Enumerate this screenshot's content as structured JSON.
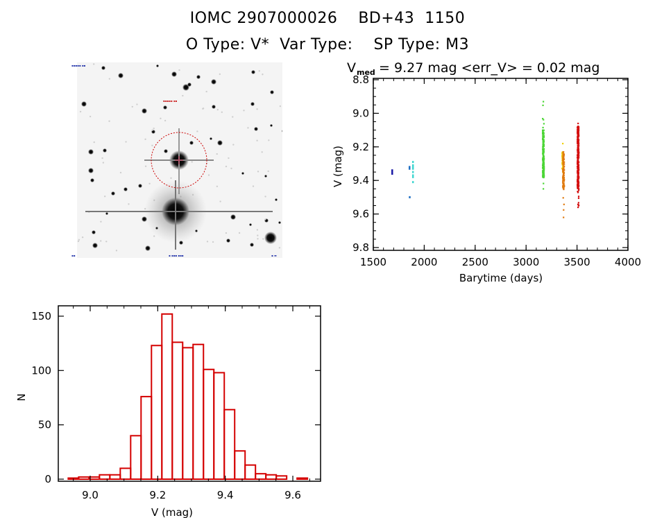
{
  "header": {
    "title_line1": "IOMC 2907000026    BD+43  1150",
    "title_line2": "O Type: V*  Var Type:    SP Type: M3"
  },
  "sky_image": {
    "description": "finder chart, inverted grayscale star field",
    "target_marker": "red dashed circle with cross",
    "corner_labels": [
      "",
      "",
      "",
      "",
      ""
    ]
  },
  "colors": {
    "histogram_bar": "#d40000",
    "axis": "#000000",
    "target_circle": "#cc0000"
  },
  "chart_data": [
    {
      "type": "scatter",
      "title_prefix": "V",
      "title_subscript": "med",
      "title_rest": " = 9.27 mag <err_V> = 0.02 mag",
      "xlabel": "Barytime (days)",
      "ylabel": "V (mag)",
      "xlim": [
        1500,
        4000
      ],
      "ylim": [
        9.82,
        8.8
      ],
      "y_inverted": true,
      "xticks": [
        1500,
        2000,
        2500,
        3000,
        3500,
        4000
      ],
      "xtick_labels": [
        "1500",
        "2000",
        "2500",
        "3000",
        "3500",
        "4000"
      ],
      "yticks": [
        8.8,
        9.0,
        9.2,
        9.4,
        9.6,
        9.8
      ],
      "ytick_labels": [
        "8.8",
        "9.0",
        "9.2",
        "9.4",
        "9.6",
        "9.8"
      ],
      "grid": false,
      "series": [
        {
          "name": "group1",
          "color": "#1a1aa6",
          "x": [
            1684,
            1684,
            1684
          ],
          "y": [
            9.34,
            9.35,
            9.36
          ]
        },
        {
          "name": "group2",
          "color": "#1f6fc4",
          "x": [
            1854,
            1854,
            1856
          ],
          "y": [
            9.32,
            9.33,
            9.5
          ]
        },
        {
          "name": "group3",
          "color": "#3fd6d0",
          "x": [
            1888,
            1888,
            1888,
            1888,
            1888,
            1888,
            1888,
            1888
          ],
          "y": [
            9.29,
            9.31,
            9.32,
            9.33,
            9.35,
            9.37,
            9.38,
            9.41
          ]
        },
        {
          "name": "group4",
          "color": "#4cd636",
          "x_center": 3169,
          "y_range": [
            8.93,
            9.45
          ],
          "dense_range": [
            9.1,
            9.38
          ],
          "count": 170
        },
        {
          "name": "group5",
          "color": "#f0d000",
          "x_center": 3360,
          "y_range": [
            9.18,
            9.35
          ],
          "dense_range": [
            9.22,
            9.33
          ],
          "count": 40
        },
        {
          "name": "group6",
          "color": "#e07a10",
          "x_center": 3367,
          "y_range": [
            9.23,
            9.62
          ],
          "dense_range": [
            9.24,
            9.45
          ],
          "count": 110
        },
        {
          "name": "group7",
          "color": "#d41010",
          "x_center": 3510,
          "y_range": [
            9.06,
            9.56
          ],
          "dense_range": [
            9.08,
            9.45
          ],
          "count": 330
        }
      ]
    },
    {
      "type": "bar",
      "subtype": "histogram",
      "title": "",
      "xlabel": "V (mag)",
      "ylabel": "N",
      "xlim": [
        8.91,
        9.69
      ],
      "ylim": [
        0,
        160
      ],
      "xticks": [
        9.0,
        9.2,
        9.4,
        9.6
      ],
      "xtick_labels": [
        "9.0",
        "9.2",
        "9.4",
        "9.6"
      ],
      "yticks": [
        0,
        50,
        100,
        150
      ],
      "ytick_labels": [
        "0",
        "50",
        "100",
        "150"
      ],
      "grid": false,
      "bin_start": 8.935,
      "bin_width": 0.0308,
      "values": [
        1,
        2,
        2,
        4,
        4,
        10,
        40,
        76,
        123,
        152,
        126,
        121,
        124,
        101,
        98,
        64,
        26,
        13,
        5,
        4,
        3,
        0,
        1
      ],
      "color": "#d40000"
    }
  ]
}
